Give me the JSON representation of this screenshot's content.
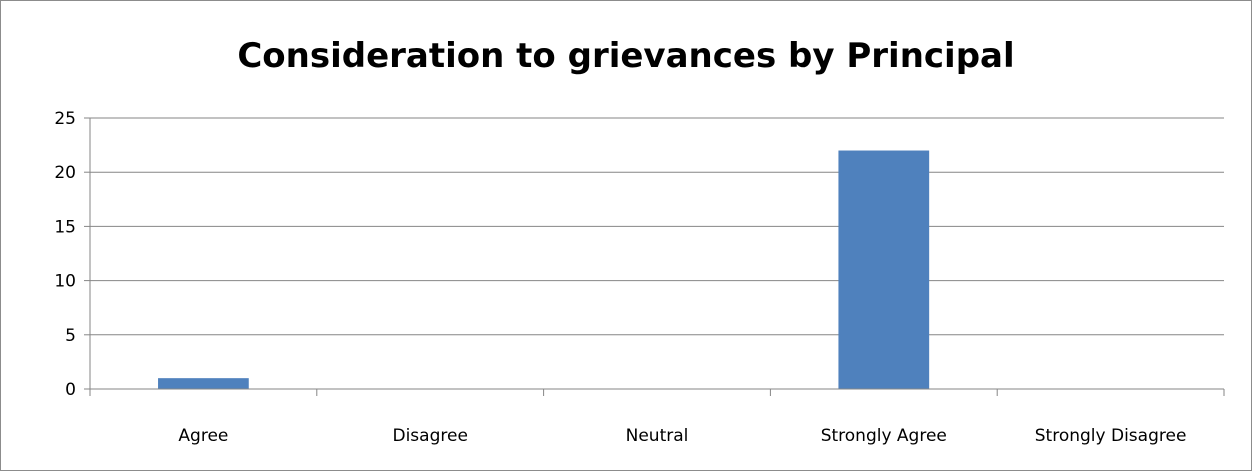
{
  "chart_data": {
    "type": "bar",
    "title": "Consideration to grievances by Principal",
    "xlabel": "",
    "ylabel": "",
    "categories": [
      "Agree",
      "Disagree",
      "Neutral",
      "Strongly Agree",
      "Strongly Disagree"
    ],
    "values": [
      1,
      0,
      0,
      22,
      0
    ],
    "ylim": [
      0,
      25
    ],
    "yticks": [
      0,
      5,
      10,
      15,
      20,
      25
    ],
    "grid": true,
    "legend": "none",
    "bar_color": "#4f81bd",
    "grid_color": "#868686",
    "axis_color": "#868686"
  }
}
